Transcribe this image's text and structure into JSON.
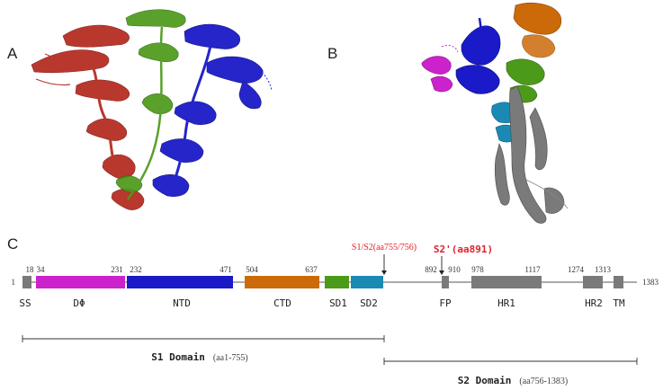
{
  "panels": {
    "a": "A",
    "b": "B",
    "c": "C"
  },
  "colors": {
    "red_chain": "#b4281c",
    "green_chain": "#4c9a1a",
    "blue_chain": "#1a1ac8",
    "orange": "#cc6a0a",
    "magenta": "#cc22cc",
    "teal": "#1a8ab4",
    "gray": "#7a7a7a",
    "cleavage_red": "#e0202a"
  },
  "domain_map": {
    "start_label": "1",
    "end_label": "1383",
    "domains": [
      {
        "name": "SS",
        "start": "",
        "end": "18",
        "color": "#7a7a7a"
      },
      {
        "name": "DΦ",
        "start": "34",
        "end": "231",
        "color": "#cc22cc"
      },
      {
        "name": "NTD",
        "start": "232",
        "end": "471",
        "color": "#1a1ac8"
      },
      {
        "name": "CTD",
        "start": "504",
        "end": "637",
        "color": "#cc6a0a"
      },
      {
        "name": "SD1",
        "start": "",
        "end": "",
        "color": "#4c9a1a"
      },
      {
        "name": "SD2",
        "start": "",
        "end": "",
        "color": "#1a8ab4"
      },
      {
        "name": "FP",
        "start": "892",
        "end": "910",
        "color": "#7a7a7a"
      },
      {
        "name": "HR1",
        "start": "978",
        "end": "1117",
        "color": "#7a7a7a"
      },
      {
        "name": "HR2",
        "start": "1274",
        "end": "1313",
        "color": "#7a7a7a"
      },
      {
        "name": "TM",
        "start": "",
        "end": "",
        "color": "#7a7a7a"
      }
    ],
    "cleavage_sites": [
      {
        "label": "S1/S2(aa755/756)"
      },
      {
        "label": "S2'(aa891)"
      }
    ],
    "regions": [
      {
        "name": "S1 Domain",
        "range": "(aa1-755)"
      },
      {
        "name": "S2 Domain",
        "range": "(aa756-1383)"
      }
    ]
  }
}
